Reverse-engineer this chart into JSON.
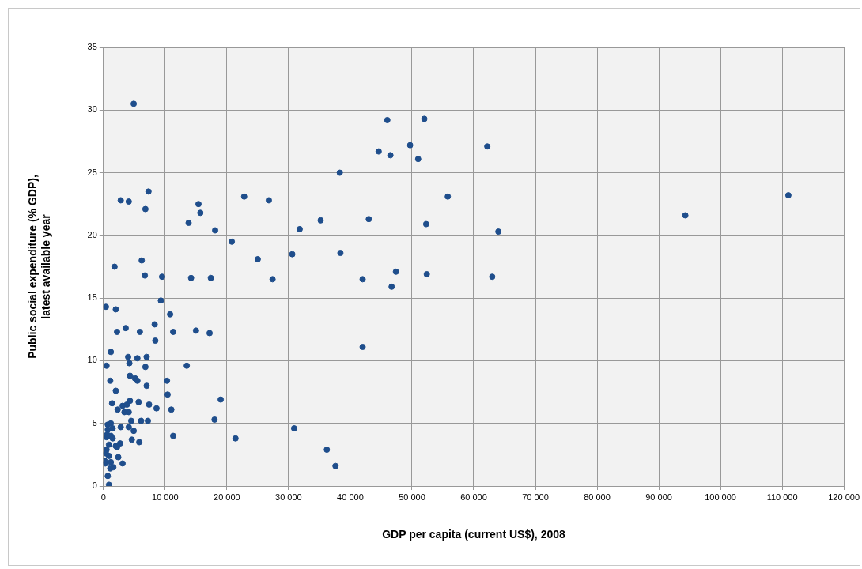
{
  "chart_data": {
    "type": "scatter",
    "xlabel": "GDP per capita (current US$), 2008",
    "ylabel": "Public social expenditure (% GDP),\nlatest available year",
    "x": [
      4900,
      46000,
      52000,
      49700,
      44600,
      46500,
      51000,
      62200,
      38300,
      111000,
      94300,
      55800,
      52300,
      64000,
      63000,
      52400,
      47400,
      46700,
      42000,
      38400,
      42000,
      43000,
      35200,
      31800,
      30600,
      27400,
      25000,
      26800,
      22800,
      20800,
      18100,
      17400,
      17200,
      15700,
      15400,
      13800,
      14200,
      15000,
      13500,
      2800,
      4100,
      7300,
      6800,
      6200,
      6700,
      9500,
      1800,
      9300,
      10800,
      8300,
      11300,
      2000,
      400,
      2200,
      3600,
      5900,
      8400,
      10400,
      11000,
      19000,
      18000,
      21400,
      11300,
      30900,
      36200,
      37600,
      1200,
      4000,
      5500,
      7000,
      500,
      4200,
      6800,
      1100,
      4300,
      5100,
      5500,
      7000,
      10300,
      2000,
      1400,
      3100,
      3800,
      4300,
      5700,
      7400,
      8600,
      2300,
      3400,
      4100,
      4500,
      6100,
      7200,
      700,
      1200,
      700,
      1500,
      2800,
      4100,
      4900,
      500,
      1200,
      1500,
      4600,
      5800,
      900,
      2000,
      2200,
      2700,
      500,
      400,
      900,
      2400,
      300,
      1200,
      3100,
      1600,
      1100,
      700,
      900,
      200,
      600
    ],
    "values": [
      30.5,
      29.2,
      29.3,
      27.2,
      26.7,
      26.4,
      26.1,
      27.1,
      25.0,
      23.2,
      21.6,
      23.1,
      20.9,
      20.3,
      16.7,
      16.9,
      17.1,
      15.9,
      16.5,
      18.6,
      11.1,
      21.3,
      21.2,
      20.5,
      18.5,
      16.5,
      18.1,
      22.8,
      23.1,
      19.5,
      20.4,
      16.6,
      12.2,
      21.8,
      22.5,
      21.0,
      16.6,
      12.4,
      9.6,
      22.8,
      22.7,
      23.5,
      22.1,
      18.0,
      16.8,
      16.7,
      17.5,
      14.8,
      13.7,
      12.9,
      12.3,
      14.1,
      14.3,
      12.3,
      12.6,
      12.3,
      11.6,
      7.3,
      6.1,
      6.9,
      5.3,
      3.8,
      4.0,
      4.6,
      2.9,
      1.6,
      10.7,
      10.3,
      10.2,
      10.3,
      9.6,
      9.8,
      9.5,
      8.4,
      8.8,
      8.6,
      8.4,
      8.0,
      8.4,
      7.6,
      6.6,
      6.4,
      6.5,
      6.8,
      6.7,
      6.5,
      6.2,
      6.1,
      5.9,
      5.9,
      5.2,
      5.2,
      5.2,
      4.9,
      5.0,
      4.5,
      4.6,
      4.7,
      4.7,
      4.4,
      3.9,
      4.0,
      3.8,
      3.7,
      3.5,
      3.3,
      3.2,
      3.1,
      3.4,
      2.9,
      2.6,
      2.4,
      2.3,
      1.8,
      1.9,
      1.8,
      1.5,
      1.4,
      0.8,
      0.1,
      2.0,
      4.1
    ],
    "color": "#1f4e8c",
    "marker": "circle",
    "xlim": [
      0,
      120000
    ],
    "xticks": [
      0,
      {
        "value": 10000,
        "label": "10 000"
      },
      {
        "value": 20000,
        "label": "20 000"
      },
      {
        "value": 30000,
        "label": "30 000"
      },
      {
        "value": 40000,
        "label": "40 000"
      },
      {
        "value": 50000,
        "label": "50 000"
      },
      {
        "value": 60000,
        "label": "60 000"
      },
      {
        "value": 70000,
        "label": "70 000"
      },
      {
        "value": 80000,
        "label": "80 000"
      },
      {
        "value": 90000,
        "label": "90 000"
      },
      {
        "value": 100000,
        "label": "100 000"
      },
      {
        "value": 110000,
        "label": "110 000"
      },
      {
        "value": 120000,
        "label": "120 000"
      }
    ],
    "ylim": [
      0,
      35
    ],
    "yticks": [
      0,
      5,
      10,
      15,
      20,
      25,
      30,
      35
    ],
    "grid": true,
    "legend": false
  }
}
